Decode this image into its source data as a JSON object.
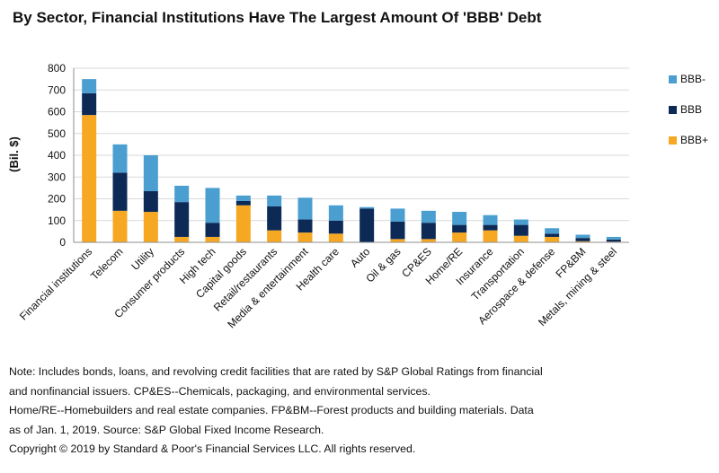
{
  "title": "By Sector, Financial Institutions Have The Largest Amount Of 'BBB' Debt",
  "colors": {
    "BBB-": "#4a9fd0",
    "BBB": "#0d2a57",
    "BBB+": "#f7a823",
    "grid": "#d9d9d9",
    "axis": "#8c8c8c"
  },
  "chart_data": {
    "type": "bar",
    "stacked": true,
    "ylabel": "(Bil. $)",
    "ylim": [
      0,
      800
    ],
    "yticks": [
      0,
      100,
      200,
      300,
      400,
      500,
      600,
      700,
      800
    ],
    "grid": true,
    "legend_position": "right",
    "categories": [
      "Financial institutions",
      "Telecom",
      "Utility",
      "Consumer products",
      "High tech",
      "Capital goods",
      "Retail/restaurants",
      "Media & entertainment",
      "Health care",
      "Auto",
      "Oil & gas",
      "CP&ES",
      "Home/RE",
      "Insurance",
      "Transportation",
      "Aerospace & defense",
      "FP&BM",
      "Metals, mining & steel"
    ],
    "series": [
      {
        "name": "BBB+",
        "values": [
          585,
          145,
          140,
          25,
          25,
          170,
          55,
          45,
          40,
          0,
          15,
          15,
          45,
          55,
          30,
          25,
          5,
          3
        ]
      },
      {
        "name": "BBB",
        "values": [
          100,
          175,
          95,
          160,
          65,
          20,
          110,
          60,
          60,
          155,
          80,
          75,
          35,
          25,
          50,
          15,
          15,
          10
        ]
      },
      {
        "name": "BBB-",
        "values": [
          65,
          130,
          165,
          75,
          160,
          25,
          50,
          100,
          70,
          7,
          60,
          55,
          60,
          45,
          25,
          25,
          15,
          12
        ]
      }
    ]
  },
  "notes": [
    "Note: Includes bonds, loans, and revolving credit facilities that are rated by S&P Global Ratings from financial",
    "and nonfinancial issuers. CP&ES--Chemicals, packaging, and environmental services.",
    "Home/RE--Homebuilders and real estate companies. FP&BM--Forest products and building materials. Data",
    "as of Jan. 1, 2019. Source: S&P Global Fixed Income Research.",
    "Copyright © 2019 by Standard & Poor's Financial Services LLC. All rights reserved."
  ]
}
